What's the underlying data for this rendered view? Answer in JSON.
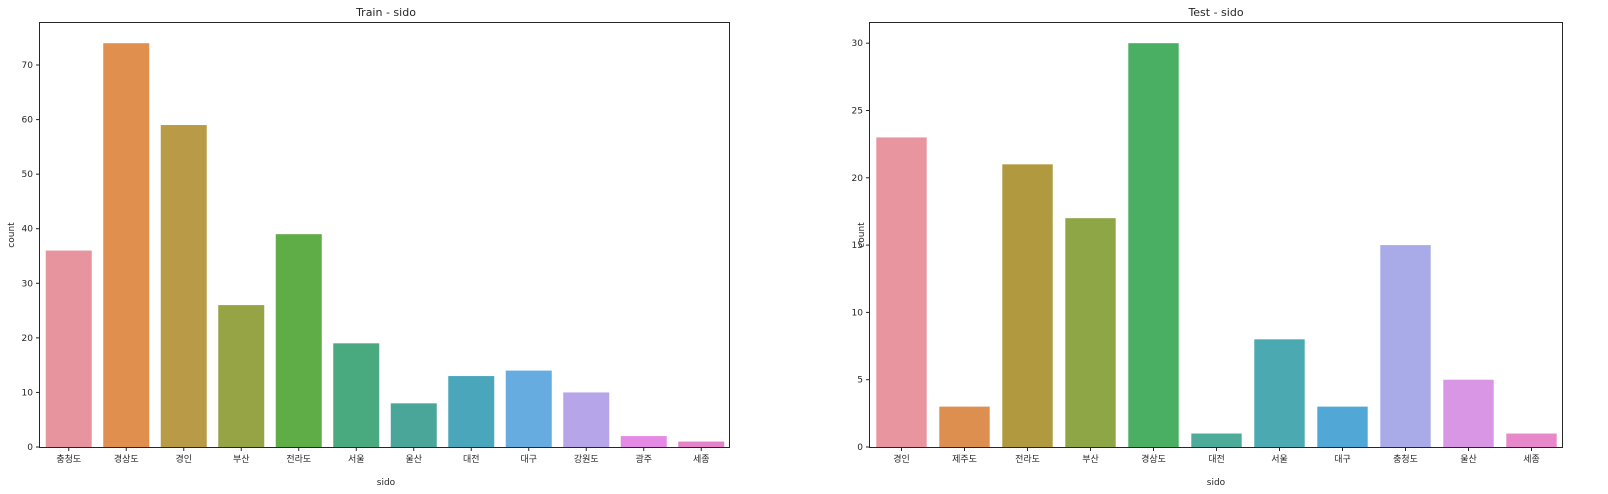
{
  "chart_data": [
    {
      "type": "bar",
      "title": "Train - sido",
      "xlabel": "sido",
      "ylabel": "count",
      "categories": [
        "충청도",
        "경상도",
        "경인",
        "부산",
        "전라도",
        "서울",
        "울산",
        "대전",
        "대구",
        "강원도",
        "광주",
        "세종"
      ],
      "values": [
        36,
        74,
        59,
        26,
        39,
        19,
        8,
        13,
        14,
        10,
        2,
        1
      ],
      "colors": [
        "#e8949f",
        "#e08f4e",
        "#b89a47",
        "#97a445",
        "#5fad47",
        "#4aaa7f",
        "#4aa699",
        "#4aa7bb",
        "#67ace1",
        "#b6a5e9",
        "#e38ae5",
        "#e583c8"
      ],
      "yticks": [
        0,
        10,
        20,
        30,
        40,
        50,
        60,
        70
      ],
      "ylim": [
        0,
        77.7
      ],
      "grid": false,
      "legend": "none"
    },
    {
      "type": "bar",
      "title": "Test - sido",
      "xlabel": "sido",
      "ylabel": "count",
      "categories": [
        "경인",
        "제주도",
        "전라도",
        "부산",
        "경상도",
        "대전",
        "서울",
        "대구",
        "충청도",
        "울산",
        "세종"
      ],
      "values": [
        23,
        3,
        21,
        17,
        30,
        1,
        8,
        3,
        15,
        5,
        1
      ],
      "colors": [
        "#e8959f",
        "#dc8f4f",
        "#b0993f",
        "#8fa646",
        "#4aae63",
        "#4cab99",
        "#4aa9b1",
        "#51a8d6",
        "#a8abe8",
        "#d896e5",
        "#e688c9"
      ],
      "yticks": [
        0,
        5,
        10,
        15,
        20,
        25,
        30
      ],
      "ylim": [
        0,
        31.5
      ],
      "grid": false,
      "legend": "none"
    }
  ]
}
